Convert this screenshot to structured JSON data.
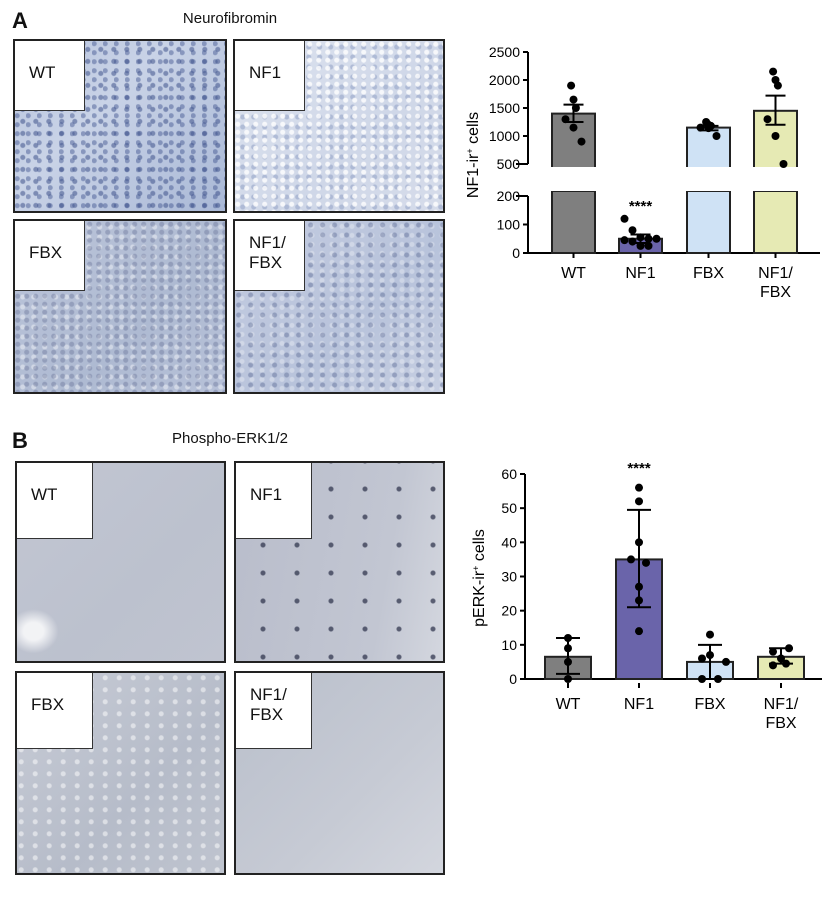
{
  "panel_a": {
    "letter": "A",
    "title": "Neurofibromin",
    "images": [
      {
        "label": "WT"
      },
      {
        "label": "NF1"
      },
      {
        "label": "FBX"
      },
      {
        "label": "NF1/\nFBX"
      }
    ]
  },
  "panel_b": {
    "letter": "B",
    "title": "Phospho-ERK1/2",
    "images": [
      {
        "label": "WT"
      },
      {
        "label": "NF1"
      },
      {
        "label": "FBX"
      },
      {
        "label": "NF1/\nFBX"
      }
    ]
  },
  "colors": {
    "WT": "#7f7f7f",
    "NF1": "#6a64aa",
    "FBX": "#cfe2f5",
    "NF1/FBX": "#e6eab4"
  },
  "chart_data": [
    {
      "type": "bar",
      "title": "Neurofibromin",
      "ylabel": "NF1-ir+ cells",
      "categories": [
        "WT",
        "NF1",
        "FBX",
        "NF1/FBX"
      ],
      "category_labels": [
        [
          "WT"
        ],
        [
          "NF1"
        ],
        [
          "FBX"
        ],
        [
          "NF1/",
          "FBX"
        ]
      ],
      "values": [
        1400,
        50,
        1150,
        1450
      ],
      "error_low": [
        1250,
        35,
        1100,
        1200
      ],
      "error_high": [
        1560,
        65,
        1180,
        1720
      ],
      "points": [
        [
          1900,
          1650,
          1500,
          1300,
          1150,
          900
        ],
        [
          120,
          80,
          55,
          50,
          50,
          45,
          40,
          25,
          25
        ],
        [
          1250,
          1200,
          1180,
          1150,
          1140,
          1000
        ],
        [
          2150,
          2000,
          1900,
          1300,
          1000,
          500
        ]
      ],
      "annotations": [
        {
          "category": "NF1",
          "text": "****"
        }
      ],
      "axis_break": {
        "lower": [
          0,
          200
        ],
        "upper": [
          500,
          2500
        ]
      },
      "yticks_lower": [
        0,
        100,
        200
      ],
      "yticks_upper": [
        500,
        1000,
        1500,
        2000,
        2500
      ],
      "grid": false
    },
    {
      "type": "bar",
      "title": "Phospho-ERK1/2",
      "ylabel": "pERK-ir+ cells",
      "categories": [
        "WT",
        "NF1",
        "FBX",
        "NF1/FBX"
      ],
      "category_labels": [
        [
          "WT"
        ],
        [
          "NF1"
        ],
        [
          "FBX"
        ],
        [
          "NF1/",
          "FBX"
        ]
      ],
      "values": [
        6.5,
        35,
        5,
        6.5
      ],
      "error_low": [
        1.5,
        21,
        0,
        4.5
      ],
      "error_high": [
        12,
        49.5,
        10,
        9
      ],
      "points": [
        [
          12,
          9,
          5,
          0
        ],
        [
          56,
          52,
          40,
          35,
          34,
          27,
          23,
          14
        ],
        [
          13,
          7,
          6,
          5,
          0,
          0
        ],
        [
          9,
          8,
          6,
          4.5,
          4
        ]
      ],
      "annotations": [
        {
          "category": "NF1",
          "text": "****"
        }
      ],
      "ylim": [
        0,
        60
      ],
      "yticks": [
        0,
        10,
        20,
        30,
        40,
        50,
        60
      ],
      "grid": false
    }
  ]
}
